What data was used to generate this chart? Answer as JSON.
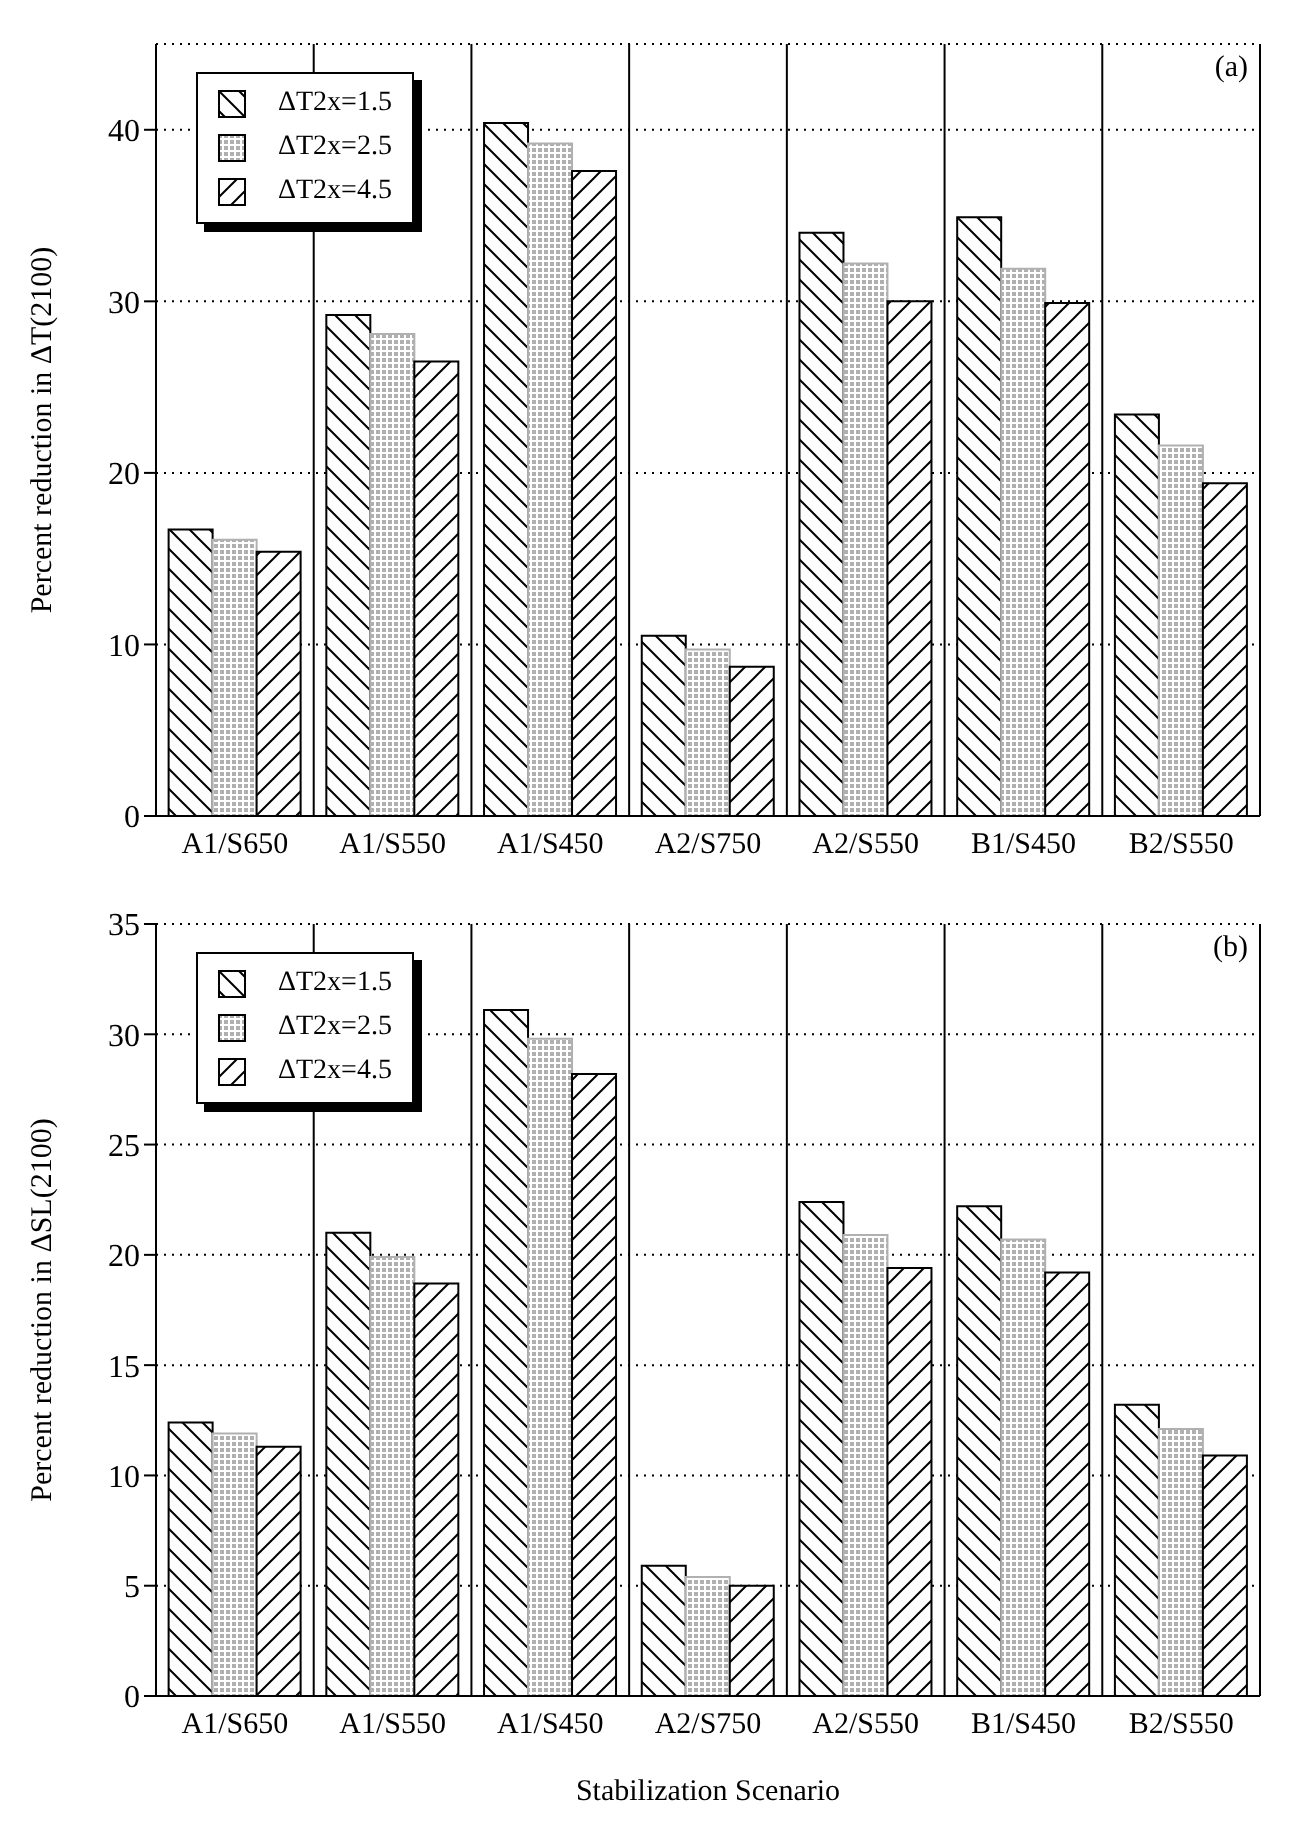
{
  "chart_data": [
    {
      "type": "bar",
      "ylabel": "Percent reduction in ΔT(2100)",
      "annotations": [
        "(a)"
      ],
      "categories": [
        "A1/S650",
        "A1/S550",
        "A1/S450",
        "A2/S750",
        "A2/S550",
        "B1/S450",
        "B2/S550"
      ],
      "series": [
        {
          "name": "ΔT2x=1.5",
          "color": "#000000",
          "values": [
            16.7,
            29.2,
            40.4,
            10.5,
            34.0,
            34.9,
            23.4
          ]
        },
        {
          "name": "ΔT2x=2.5",
          "color": "#b0b0b0",
          "values": [
            16.1,
            28.1,
            39.2,
            9.7,
            32.2,
            31.9,
            21.6
          ]
        },
        {
          "name": "ΔT2x=4.5",
          "color": "#000000",
          "values": [
            15.4,
            26.5,
            37.6,
            8.7,
            30.0,
            29.9,
            19.4
          ]
        }
      ],
      "ylim": [
        0,
        45
      ],
      "yticks": [
        0,
        10,
        20,
        30,
        40
      ],
      "grid": true,
      "legend": "top left"
    },
    {
      "type": "bar",
      "ylabel": "Percent reduction in ΔSL(2100)",
      "xlabel": "Stabilization Scenario",
      "annotations": [
        "(b)"
      ],
      "categories": [
        "A1/S650",
        "A1/S550",
        "A1/S450",
        "A2/S750",
        "A2/S550",
        "B1/S450",
        "B2/S550"
      ],
      "series": [
        {
          "name": "ΔT2x=1.5",
          "color": "#000000",
          "values": [
            12.4,
            21.0,
            31.1,
            5.9,
            22.4,
            22.2,
            13.2
          ]
        },
        {
          "name": "ΔT2x=2.5",
          "color": "#b0b0b0",
          "values": [
            11.9,
            19.9,
            29.8,
            5.4,
            20.9,
            20.7,
            12.1
          ]
        },
        {
          "name": "ΔT2x=4.5",
          "color": "#000000",
          "values": [
            11.3,
            18.7,
            28.2,
            5.0,
            19.4,
            19.2,
            10.9
          ]
        }
      ],
      "ylim": [
        0,
        35
      ],
      "yticks": [
        0,
        5,
        10,
        15,
        20,
        25,
        30,
        35
      ],
      "grid": true,
      "legend": "top left"
    }
  ]
}
